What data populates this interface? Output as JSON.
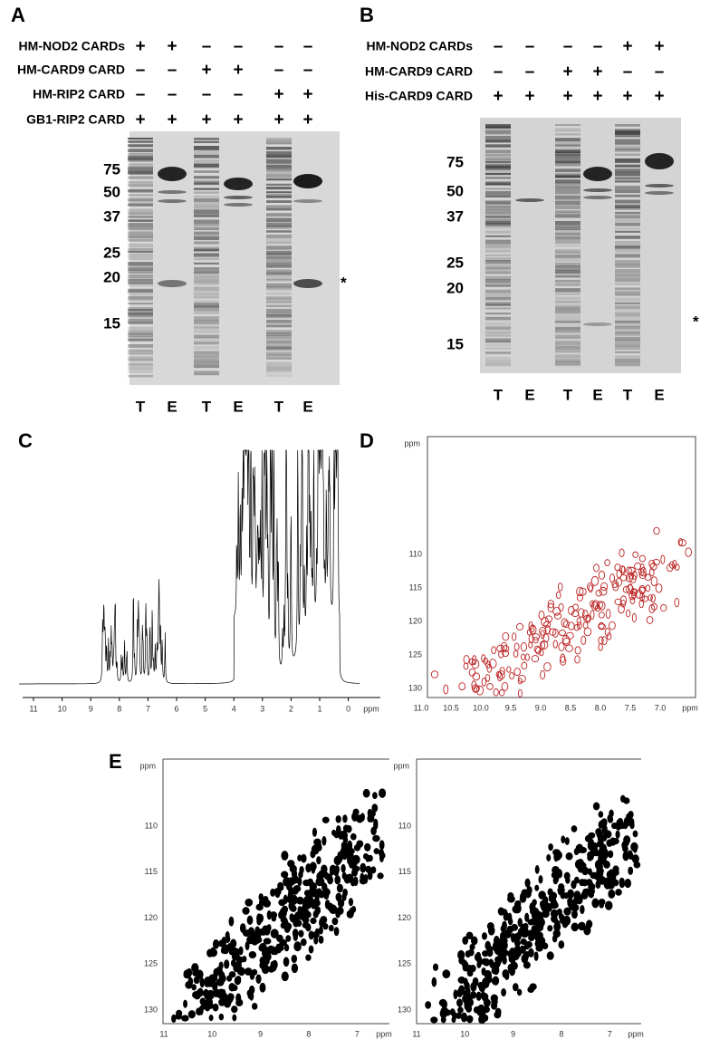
{
  "panels": {
    "A": {
      "letter": "A",
      "rows": [
        {
          "label": "HM-NOD2 CARDs",
          "signs": [
            "+",
            "+",
            "–",
            "–",
            "–",
            "–"
          ]
        },
        {
          "label": "HM-CARD9 CARD",
          "signs": [
            "–",
            "–",
            "+",
            "+",
            "–",
            "–"
          ]
        },
        {
          "label": "HM-RIP2 CARD",
          "signs": [
            "–",
            "–",
            "–",
            "–",
            "+",
            "+"
          ]
        },
        {
          "label": "GB1-RIP2 CARD",
          "signs": [
            "+",
            "+",
            "+",
            "+",
            "+",
            "+"
          ]
        }
      ],
      "markers": [
        "75",
        "50",
        "37",
        "25",
        "20",
        "15"
      ],
      "lanes": [
        "T",
        "E",
        "T",
        "E",
        "T",
        "E"
      ],
      "asterisk": "*"
    },
    "B": {
      "letter": "B",
      "rows": [
        {
          "label": "HM-NOD2 CARDs",
          "signs": [
            "–",
            "–",
            "–",
            "–",
            "+",
            "+"
          ]
        },
        {
          "label": "HM-CARD9 CARD",
          "signs": [
            "–",
            "–",
            "+",
            "+",
            "–",
            "–"
          ]
        },
        {
          "label": "His-CARD9 CARD",
          "signs": [
            "+",
            "+",
            "+",
            "+",
            "+",
            "+"
          ]
        }
      ],
      "markers": [
        "75",
        "50",
        "37",
        "25",
        "20",
        "15"
      ],
      "lanes": [
        "T",
        "E",
        "T",
        "E",
        "T",
        "E"
      ],
      "asterisk": "*"
    },
    "C": {
      "letter": "C",
      "xticks": [
        "11",
        "10",
        "9",
        "8",
        "7",
        "6",
        "5",
        "4",
        "3",
        "2",
        "1",
        "0"
      ],
      "unit": "ppm"
    },
    "D": {
      "letter": "D",
      "yunit": "ppm",
      "yticks": [
        "110",
        "115",
        "120",
        "125",
        "130"
      ],
      "xticks": [
        "11.0",
        "10.5",
        "10.0",
        "9.5",
        "9.0",
        "8.5",
        "8.0",
        "7.5",
        "7.0"
      ],
      "xunit": "ppm"
    },
    "E": {
      "letter": "E",
      "plots": [
        {
          "yunit": "ppm",
          "yticks": [
            "110",
            "115",
            "120",
            "125",
            "130"
          ],
          "xticks": [
            "11",
            "10",
            "9",
            "8",
            "7"
          ],
          "xunit": "ppm"
        },
        {
          "yunit": "ppm",
          "yticks": [
            "110",
            "115",
            "120",
            "125",
            "130"
          ],
          "xticks": [
            "11",
            "10",
            "9",
            "8",
            "7"
          ],
          "xunit": "ppm"
        }
      ]
    }
  }
}
